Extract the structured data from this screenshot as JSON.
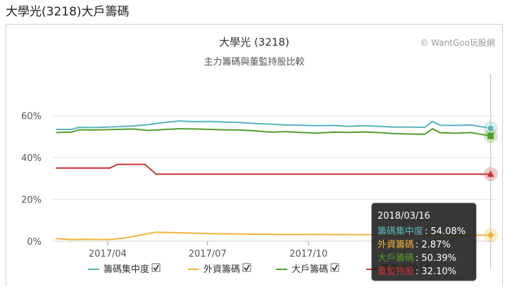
{
  "page": {
    "title": "大學光(3218)大戶籌碼"
  },
  "chart_data": {
    "type": "line",
    "title": "大學光 (3218)",
    "subtitle": "主力籌碼與董監持股比較",
    "credit": "© WantGoo玩股網",
    "y_ticks": [
      "60%",
      "40%",
      "20%",
      "0%"
    ],
    "ylim": [
      0,
      70
    ],
    "x_ticks": [
      "2017/04",
      "2017/07",
      "2017/10"
    ],
    "xlim": [
      "2017-02-10",
      "2018-03-20"
    ],
    "series": [
      {
        "name": "籌碼集中度",
        "color": "#5ab4bd",
        "points": [
          [
            "2017-02-13",
            53.5
          ],
          [
            "2017-02-27",
            53.5
          ],
          [
            "2017-03-06",
            54.5
          ],
          [
            "2017-03-20",
            54.4
          ],
          [
            "2017-04-10",
            54.8
          ],
          [
            "2017-04-24",
            55.1
          ],
          [
            "2017-05-08",
            55.8
          ],
          [
            "2017-05-22",
            56.8
          ],
          [
            "2017-06-05",
            57.5
          ],
          [
            "2017-06-19",
            57.2
          ],
          [
            "2017-07-03",
            57.3
          ],
          [
            "2017-07-17",
            57.0
          ],
          [
            "2017-07-31",
            56.8
          ],
          [
            "2017-08-14",
            56.3
          ],
          [
            "2017-08-28",
            56.0
          ],
          [
            "2017-09-11",
            55.6
          ],
          [
            "2017-09-25",
            55.5
          ],
          [
            "2017-10-09",
            55.3
          ],
          [
            "2017-10-23",
            55.4
          ],
          [
            "2017-11-06",
            55.0
          ],
          [
            "2017-11-20",
            55.3
          ],
          [
            "2017-12-04",
            55.0
          ],
          [
            "2017-12-18",
            54.6
          ],
          [
            "2018-01-02",
            54.6
          ],
          [
            "2018-01-15",
            54.5
          ],
          [
            "2018-01-22",
            57.3
          ],
          [
            "2018-01-29",
            55.5
          ],
          [
            "2018-02-12",
            55.4
          ],
          [
            "2018-02-26",
            55.6
          ],
          [
            "2018-03-16",
            54.08
          ]
        ]
      },
      {
        "name": "外資籌碼",
        "color": "#f0b33b",
        "points": [
          [
            "2017-02-13",
            1.2
          ],
          [
            "2017-02-27",
            0.8
          ],
          [
            "2017-03-13",
            0.9
          ],
          [
            "2017-04-03",
            0.8
          ],
          [
            "2017-04-17",
            1.5
          ],
          [
            "2017-05-01",
            3.0
          ],
          [
            "2017-05-15",
            4.3
          ],
          [
            "2017-05-29",
            4.1
          ],
          [
            "2017-06-12",
            3.9
          ],
          [
            "2017-07-03",
            3.6
          ],
          [
            "2017-07-31",
            3.4
          ],
          [
            "2017-08-28",
            3.3
          ],
          [
            "2017-09-25",
            3.3
          ],
          [
            "2017-10-23",
            3.2
          ],
          [
            "2017-11-20",
            3.1
          ],
          [
            "2017-12-18",
            3.0
          ],
          [
            "2018-01-15",
            3.0
          ],
          [
            "2018-02-12",
            2.9
          ],
          [
            "2018-03-16",
            2.87
          ]
        ]
      },
      {
        "name": "大戶籌碼",
        "color": "#4f9e2a",
        "points": [
          [
            "2017-02-13",
            52.0
          ],
          [
            "2017-02-27",
            52.2
          ],
          [
            "2017-03-06",
            53.3
          ],
          [
            "2017-03-20",
            53.2
          ],
          [
            "2017-04-10",
            53.5
          ],
          [
            "2017-04-24",
            53.7
          ],
          [
            "2017-05-08",
            53.0
          ],
          [
            "2017-05-22",
            53.4
          ],
          [
            "2017-06-05",
            53.8
          ],
          [
            "2017-06-19",
            53.7
          ],
          [
            "2017-07-03",
            53.5
          ],
          [
            "2017-07-17",
            53.3
          ],
          [
            "2017-07-31",
            53.2
          ],
          [
            "2017-08-14",
            52.8
          ],
          [
            "2017-08-28",
            52.2
          ],
          [
            "2017-09-11",
            52.4
          ],
          [
            "2017-09-25",
            52.0
          ],
          [
            "2017-10-09",
            51.7
          ],
          [
            "2017-10-23",
            52.2
          ],
          [
            "2017-11-06",
            52.1
          ],
          [
            "2017-11-20",
            52.3
          ],
          [
            "2017-12-04",
            52.0
          ],
          [
            "2017-12-18",
            51.5
          ],
          [
            "2018-01-02",
            51.3
          ],
          [
            "2018-01-15",
            51.2
          ],
          [
            "2018-01-22",
            53.8
          ],
          [
            "2018-01-29",
            51.9
          ],
          [
            "2018-02-12",
            51.7
          ],
          [
            "2018-02-26",
            52.0
          ],
          [
            "2018-03-16",
            50.39
          ]
        ]
      },
      {
        "name": "董監持股",
        "color": "#cc3333",
        "points": [
          [
            "2017-02-13",
            35.0
          ],
          [
            "2017-04-03",
            35.0
          ],
          [
            "2017-04-10",
            36.8
          ],
          [
            "2017-05-05",
            36.8
          ],
          [
            "2017-05-15",
            32.1
          ],
          [
            "2018-03-16",
            32.1
          ]
        ]
      }
    ],
    "tooltip": {
      "date": "2018/03/16",
      "rows": [
        {
          "label": "籌碼集中度",
          "value": ": 54.08%",
          "color": "#5ab4bd"
        },
        {
          "label": "外資籌碼",
          "value": ": 2.87%",
          "color": "#f0b33b"
        },
        {
          "label": "大戶籌碼",
          "value": ": 50.39%",
          "color": "#4f9e2a"
        },
        {
          "label": "董監持股",
          "value": ": 32.10%",
          "color": "#cc3333"
        }
      ]
    },
    "legend_placement": "bottom",
    "grid": true
  }
}
